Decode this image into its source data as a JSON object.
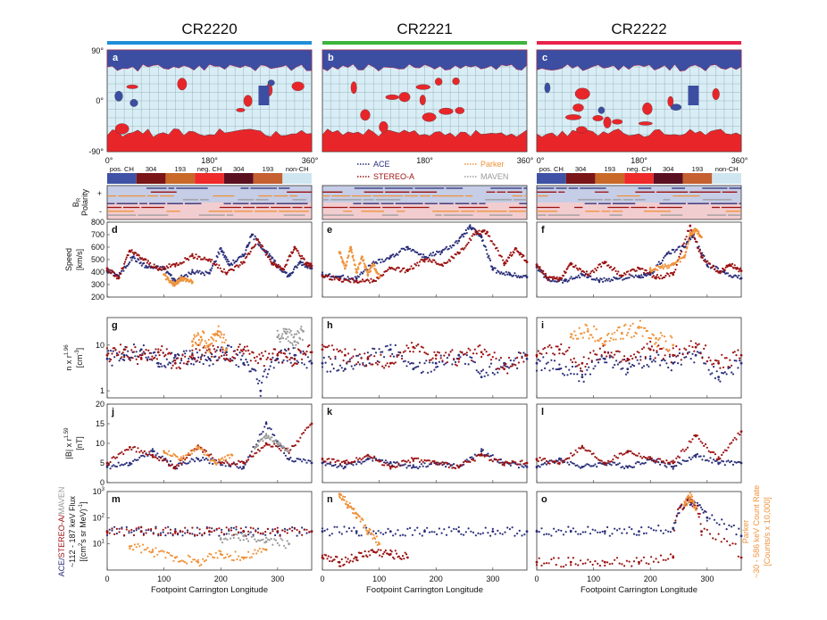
{
  "figure": {
    "rotations": [
      {
        "id": "cr2220",
        "title": "CR2220",
        "color": "#1f8fd8"
      },
      {
        "id": "cr2221",
        "title": "CR2221",
        "color": "#3cb43c"
      },
      {
        "id": "cr2222",
        "title": "CR2222",
        "color": "#e8234a"
      }
    ],
    "map_panel_letters": [
      "a",
      "b",
      "c"
    ],
    "map_lat_labels": [
      "90°",
      "0°",
      "-90°"
    ],
    "map_lon_labels": [
      "0°",
      "180°",
      "360°"
    ],
    "map_lon_labels_mid": [
      "0°",
      "180°",
      "360°"
    ],
    "map_lon_labels_right": [
      "0°",
      "180°",
      "360°"
    ],
    "ch_legend": {
      "items": [
        "pos. CH",
        "304",
        "193",
        "neg. CH",
        "304",
        "193",
        "non-CH"
      ],
      "colors": [
        "#3f52a6",
        "#7a1518",
        "#c8692a",
        "#ee2a2a",
        "#5a1020",
        "#c56030",
        "#cfe6f0"
      ]
    },
    "sc_legend": [
      {
        "name": "ACE",
        "color": "#2a2f7a"
      },
      {
        "name": "STEREO-A",
        "color": "#9b1111"
      },
      {
        "name": "Parker",
        "color": "#f0923a"
      },
      {
        "name": "MAVEN",
        "color": "#9a9a9a"
      }
    ],
    "polarity_ylabel": [
      "Polarity",
      "B"
    ],
    "polarity_ylabel_sub": "R",
    "polarity_ticks": [
      "+",
      "-"
    ],
    "speed_ylabel": [
      "Speed",
      "[km/s]"
    ],
    "density_ylabel": [
      "n x r",
      "[cm",
      "]"
    ],
    "density_ylabel_sup": [
      "1.96",
      "-3"
    ],
    "field_ylabel": [
      "|B| x r",
      "[nT]"
    ],
    "field_ylabel_sup": "1.59",
    "flux_ylabel_left": [
      "ACE/",
      "STEREO-A/",
      "MAVEN"
    ],
    "flux_ylabel_left2": [
      "~112 - 187 keV Flux",
      "[(cm",
      "s sr MeV)",
      "]"
    ],
    "flux_ylabel_left2_sup": [
      "2",
      "-1"
    ],
    "flux_ylabel_right": [
      "Parker",
      "~30 - 586 keV Count Rate",
      "[Counts/s x 10,000]"
    ],
    "panel_letters": {
      "speed": [
        "d",
        "e",
        "f"
      ],
      "density": [
        "g",
        "h",
        "i"
      ],
      "field": [
        "j",
        "k",
        "l"
      ],
      "flux": [
        "m",
        "n",
        "o"
      ]
    },
    "xlabel": "Footpoint Carrington Longitude",
    "xticks": [
      "0",
      "100",
      "200",
      "300"
    ]
  },
  "chart_data": [
    {
      "type": "scatter",
      "title": "",
      "ylabel": "Speed [km/s]",
      "ylim": [
        200,
        800
      ],
      "yticks": [
        "200",
        "300",
        "400",
        "500",
        "600",
        "700",
        "800"
      ],
      "xlabel": "Footpoint Carrington Longitude",
      "xlim": [
        0,
        360
      ],
      "series": [
        {
          "name": "ACE",
          "rotation": "CR2220",
          "x": [
            0,
            20,
            45,
            70,
            100,
            120,
            150,
            180,
            200,
            215,
            240,
            255,
            280,
            300,
            320,
            340,
            360
          ],
          "y": [
            410,
            370,
            520,
            440,
            430,
            330,
            400,
            390,
            590,
            460,
            530,
            700,
            560,
            450,
            370,
            480,
            430
          ]
        },
        {
          "name": "STEREO-A",
          "rotation": "CR2220",
          "x": [
            0,
            20,
            40,
            65,
            90,
            120,
            150,
            180,
            210,
            240,
            265,
            290,
            310,
            330,
            350,
            360
          ],
          "y": [
            430,
            350,
            570,
            500,
            420,
            460,
            530,
            500,
            390,
            480,
            660,
            470,
            420,
            600,
            470,
            450
          ]
        },
        {
          "name": "Parker",
          "rotation": "CR2220",
          "x": [
            100,
            110,
            120,
            130,
            140,
            150
          ],
          "y": [
            380,
            320,
            300,
            350,
            340,
            320
          ]
        },
        {
          "name": "ACE",
          "rotation": "CR2221",
          "x": [
            0,
            30,
            60,
            90,
            120,
            150,
            180,
            210,
            240,
            260,
            280,
            300,
            330,
            360
          ],
          "y": [
            380,
            360,
            350,
            470,
            520,
            600,
            520,
            560,
            650,
            760,
            680,
            420,
            380,
            360
          ]
        },
        {
          "name": "STEREO-A",
          "rotation": "CR2221",
          "x": [
            0,
            30,
            60,
            90,
            120,
            150,
            180,
            210,
            240,
            270,
            290,
            320,
            340,
            360
          ],
          "y": [
            370,
            340,
            330,
            330,
            430,
            410,
            500,
            460,
            550,
            720,
            720,
            470,
            590,
            480
          ]
        },
        {
          "name": "Parker",
          "rotation": "CR2221",
          "x": [
            30,
            40,
            50,
            60,
            70,
            80,
            90,
            100
          ],
          "y": [
            560,
            430,
            600,
            400,
            520,
            380,
            460,
            360
          ]
        },
        {
          "name": "ACE",
          "rotation": "CR2222",
          "x": [
            0,
            20,
            50,
            80,
            110,
            140,
            180,
            200,
            230,
            260,
            275,
            300,
            330,
            360
          ],
          "y": [
            440,
            340,
            330,
            380,
            330,
            350,
            360,
            380,
            550,
            600,
            700,
            460,
            400,
            350
          ]
        },
        {
          "name": "STEREO-A",
          "rotation": "CR2222",
          "x": [
            0,
            20,
            40,
            60,
            90,
            120,
            150,
            180,
            210,
            240,
            270,
            290,
            320,
            340,
            360
          ],
          "y": [
            460,
            350,
            340,
            470,
            380,
            480,
            370,
            430,
            360,
            380,
            770,
            520,
            400,
            460,
            410
          ]
        },
        {
          "name": "Parker",
          "rotation": "CR2222",
          "x": [
            200,
            220,
            240,
            260,
            270,
            280,
            290
          ],
          "y": [
            420,
            440,
            460,
            520,
            700,
            740,
            680
          ]
        }
      ]
    },
    {
      "type": "scatter",
      "title": "",
      "ylabel": "n x r^1.96 [cm^-3]",
      "yscale": "log",
      "ylim": [
        0.7,
        40
      ],
      "yticks": [
        "1",
        "10"
      ],
      "xlim": [
        0,
        360
      ],
      "series": [
        {
          "name": "ACE",
          "rotation": "CR2220",
          "x": [
            0,
            30,
            60,
            90,
            120,
            150,
            180,
            210,
            240,
            270,
            300,
            330,
            360
          ],
          "y": [
            5,
            6,
            8,
            4,
            6,
            5,
            5,
            7,
            4,
            1,
            5,
            6,
            4
          ]
        },
        {
          "name": "STEREO-A",
          "rotation": "CR2220",
          "x": [
            0,
            30,
            60,
            90,
            120,
            150,
            180,
            210,
            240,
            270,
            300,
            330,
            360
          ],
          "y": [
            6,
            8,
            5,
            7,
            4,
            6,
            8,
            5,
            8,
            5,
            6,
            5,
            7
          ]
        },
        {
          "name": "Parker",
          "rotation": "CR2220",
          "x": [
            150,
            165,
            180,
            195,
            210
          ],
          "y": [
            12,
            15,
            10,
            20,
            8
          ]
        },
        {
          "name": "MAVEN",
          "rotation": "CR2220",
          "x": [
            300,
            315,
            330,
            345
          ],
          "y": [
            15,
            18,
            12,
            20
          ]
        },
        {
          "name": "ACE",
          "rotation": "CR2221",
          "x": [
            0,
            40,
            80,
            120,
            160,
            200,
            240,
            280,
            320,
            360
          ],
          "y": [
            4,
            3,
            5,
            8,
            3,
            4,
            6,
            2,
            4,
            5
          ]
        },
        {
          "name": "STEREO-A",
          "rotation": "CR2221",
          "x": [
            0,
            40,
            80,
            120,
            160,
            200,
            240,
            280,
            320,
            360
          ],
          "y": [
            8,
            6,
            5,
            4,
            9,
            6,
            5,
            7,
            3,
            6
          ]
        },
        {
          "name": "ACE",
          "rotation": "CR2222",
          "x": [
            0,
            40,
            80,
            120,
            160,
            200,
            240,
            280,
            320,
            360
          ],
          "y": [
            4,
            3,
            2,
            5,
            3,
            5,
            4,
            6,
            2,
            4
          ]
        },
        {
          "name": "STEREO-A",
          "rotation": "CR2222",
          "x": [
            0,
            40,
            80,
            120,
            160,
            200,
            240,
            280,
            320,
            360
          ],
          "y": [
            6,
            8,
            4,
            7,
            5,
            8,
            6,
            9,
            4,
            6
          ]
        },
        {
          "name": "Parker",
          "rotation": "CR2222",
          "x": [
            60,
            90,
            120,
            150,
            180,
            210,
            240
          ],
          "y": [
            15,
            20,
            12,
            18,
            25,
            14,
            10
          ]
        }
      ]
    },
    {
      "type": "scatter",
      "title": "",
      "ylabel": "|B| x r^1.59 [nT]",
      "ylim": [
        0,
        20
      ],
      "yticks": [
        "0",
        "5",
        "10",
        "15",
        "20"
      ],
      "xlim": [
        0,
        360
      ],
      "series": [
        {
          "name": "ACE",
          "rotation": "CR2220",
          "x": [
            0,
            40,
            80,
            120,
            160,
            200,
            240,
            280,
            320,
            360
          ],
          "y": [
            4,
            5,
            8,
            4,
            6,
            5,
            4,
            15,
            6,
            5
          ]
        },
        {
          "name": "STEREO-A",
          "rotation": "CR2220",
          "x": [
            0,
            40,
            80,
            120,
            160,
            200,
            240,
            280,
            320,
            360
          ],
          "y": [
            5,
            9,
            7,
            4,
            9,
            5,
            5,
            10,
            8,
            15
          ]
        },
        {
          "name": "Parker",
          "rotation": "CR2220",
          "x": [
            100,
            130,
            160,
            190,
            220
          ],
          "y": [
            8,
            6,
            9,
            5,
            7
          ]
        },
        {
          "name": "MAVEN",
          "rotation": "CR2220",
          "x": [
            260,
            280,
            300,
            320
          ],
          "y": [
            9,
            12,
            10,
            8
          ]
        },
        {
          "name": "ACE",
          "rotation": "CR2221",
          "x": [
            0,
            40,
            80,
            120,
            160,
            200,
            240,
            280,
            320,
            360
          ],
          "y": [
            5,
            4,
            6,
            5,
            4,
            5,
            4,
            8,
            5,
            4
          ]
        },
        {
          "name": "STEREO-A",
          "rotation": "CR2221",
          "x": [
            0,
            40,
            80,
            120,
            160,
            200,
            240,
            280,
            320,
            360
          ],
          "y": [
            6,
            5,
            7,
            4,
            6,
            5,
            4,
            7,
            5,
            5
          ]
        },
        {
          "name": "ACE",
          "rotation": "CR2222",
          "x": [
            0,
            40,
            80,
            120,
            160,
            200,
            240,
            280,
            320,
            360
          ],
          "y": [
            4,
            6,
            4,
            5,
            4,
            6,
            4,
            7,
            5,
            5
          ]
        },
        {
          "name": "STEREO-A",
          "rotation": "CR2222",
          "x": [
            0,
            40,
            80,
            120,
            160,
            200,
            240,
            280,
            320,
            360
          ],
          "y": [
            6,
            5,
            9,
            5,
            8,
            6,
            5,
            12,
            6,
            13
          ]
        }
      ]
    },
    {
      "type": "scatter",
      "title": "",
      "ylabel": "~112 - 187 keV Flux [(cm^2 s sr MeV)^-1]",
      "yscale": "log",
      "ylim": [
        1,
        1000
      ],
      "yticks": [
        "10",
        "10",
        "10"
      ],
      "ytick_sups": [
        "1",
        "2",
        "3"
      ],
      "xlim": [
        0,
        360
      ],
      "series": [
        {
          "name": "ACE",
          "rotation": "CR2220",
          "x": [
            0,
            60,
            120,
            180,
            240,
            300,
            360
          ],
          "y": [
            30,
            30,
            30,
            30,
            30,
            30,
            30
          ]
        },
        {
          "name": "STEREO-A",
          "rotation": "CR2220",
          "x": [
            0,
            60,
            120,
            180,
            240,
            300,
            360
          ],
          "y": [
            30,
            30,
            30,
            30,
            30,
            30,
            30
          ]
        },
        {
          "name": "Parker",
          "rotation": "CR2220",
          "x": [
            40,
            80,
            120,
            160,
            200,
            240,
            280
          ],
          "y": [
            8,
            5,
            3,
            2,
            4,
            3,
            6
          ]
        },
        {
          "name": "MAVEN",
          "rotation": "CR2220",
          "x": [
            200,
            240,
            280,
            320
          ],
          "y": [
            15,
            20,
            12,
            10
          ]
        },
        {
          "name": "ACE",
          "rotation": "CR2221",
          "x": [
            0,
            60,
            120,
            180,
            240,
            300,
            360
          ],
          "y": [
            30,
            30,
            30,
            30,
            30,
            30,
            30
          ]
        },
        {
          "name": "STEREO-A",
          "rotation": "CR2221",
          "x": [
            0,
            30,
            60,
            90,
            120,
            150
          ],
          "y": [
            3,
            2,
            3,
            5,
            4,
            3
          ]
        },
        {
          "name": "Parker",
          "rotation": "CR2221",
          "x": [
            30,
            45,
            60,
            80,
            100
          ],
          "y": [
            800,
            300,
            100,
            30,
            10
          ]
        },
        {
          "name": "ACE",
          "rotation": "CR2222",
          "x": [
            0,
            60,
            120,
            180,
            240,
            270,
            300,
            360
          ],
          "y": [
            30,
            30,
            30,
            30,
            40,
            400,
            100,
            20
          ]
        },
        {
          "name": "STEREO-A",
          "rotation": "CR2222",
          "x": [
            0,
            60,
            120,
            180,
            240,
            270,
            290,
            360
          ],
          "y": [
            2,
            2,
            2,
            2,
            3,
            500,
            30,
            3
          ]
        },
        {
          "name": "Parker",
          "rotation": "CR2222",
          "x": [
            260,
            270,
            280
          ],
          "y": [
            300,
            600,
            200
          ]
        }
      ]
    }
  ]
}
